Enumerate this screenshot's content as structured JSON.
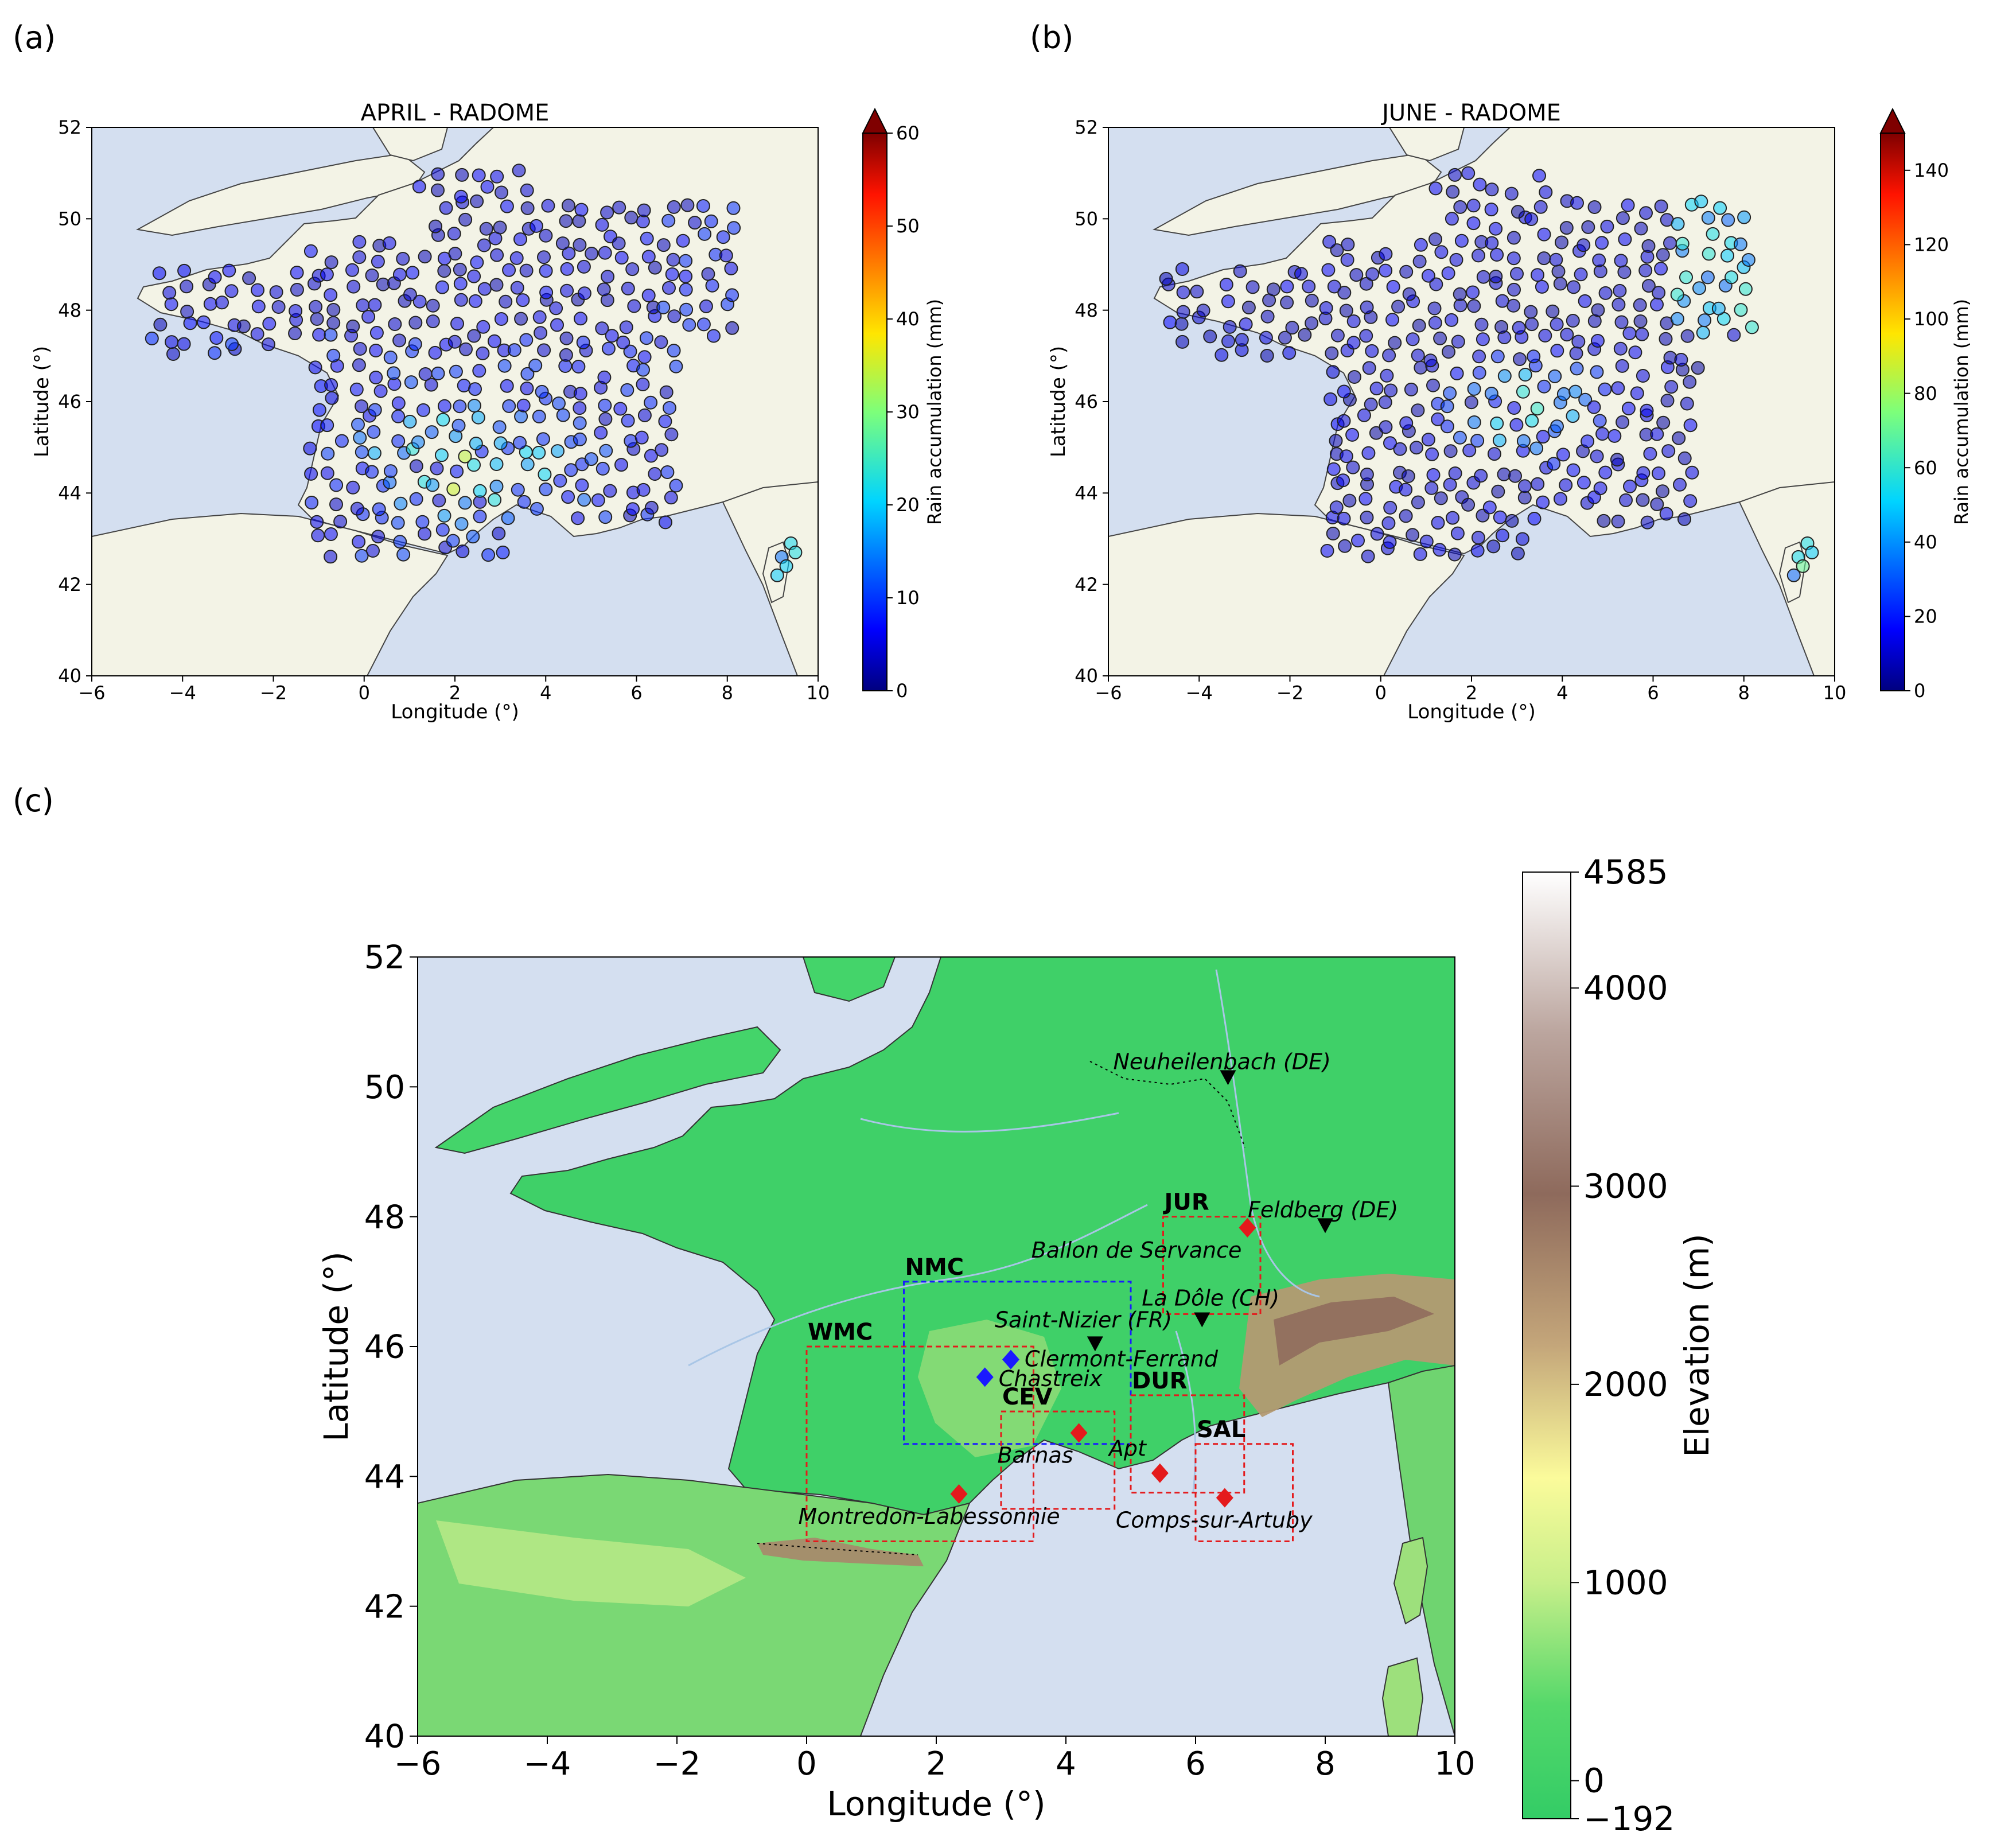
{
  "panels": {
    "a": {
      "label": "(a)",
      "title": "APRIL - RADOME",
      "xlabel": "Longitude (°)",
      "ylabel": "Latitude (°)",
      "cbar_label": "Rain accumulation (mm)",
      "cbar_ticks": [
        "0",
        "10",
        "20",
        "30",
        "40",
        "50",
        "60"
      ],
      "cbar_max": 60
    },
    "b": {
      "label": "(b)",
      "title": "JUNE - RADOME",
      "xlabel": "Longitude (°)",
      "ylabel": "Latitude (°)",
      "cbar_label": "Rain accumulation (mm)",
      "cbar_ticks": [
        "0",
        "20",
        "40",
        "60",
        "80",
        "100",
        "120",
        "140"
      ],
      "cbar_max": 150
    },
    "c": {
      "label": "(c)",
      "xlabel": "Longitude (°)",
      "ylabel": "Latitude (°)",
      "cbar_label": "Elevation (m)",
      "cbar_ticks": [
        "4585",
        "4000",
        "3000",
        "2000",
        "1000",
        "0",
        "-192"
      ],
      "cbar_range": [
        -192,
        4585
      ]
    }
  },
  "axes": {
    "x_ticks": [
      "−6",
      "−4",
      "−2",
      "0",
      "2",
      "4",
      "6",
      "8",
      "10"
    ],
    "y_ticks": [
      "40",
      "42",
      "44",
      "46",
      "48",
      "50",
      "52"
    ],
    "xlim": [
      -6,
      10
    ],
    "ylim": [
      40,
      52
    ]
  },
  "colors": {
    "sea": "#d4dff0",
    "land": "#f3f3e6",
    "rivers": "#a9c6e6",
    "terrain_low": "#3dd26a",
    "red": "#e41a1c",
    "blue": "#1a1aff"
  },
  "regions": [
    {
      "name": "WMC",
      "lon": [
        0,
        3.5
      ],
      "lat": [
        43,
        46
      ],
      "color": "red"
    },
    {
      "name": "NMC",
      "lon": [
        1.5,
        5
      ],
      "lat": [
        44.5,
        47
      ],
      "color": "blue"
    },
    {
      "name": "CEV",
      "lon": [
        3,
        4.75
      ],
      "lat": [
        43.5,
        45
      ],
      "color": "red"
    },
    {
      "name": "JUR",
      "lon": [
        5.5,
        7
      ],
      "lat": [
        46.5,
        48
      ],
      "color": "red"
    },
    {
      "name": "DUR",
      "lon": [
        5,
        6.75
      ],
      "lat": [
        43.75,
        45.25
      ],
      "color": "red"
    },
    {
      "name": "SAL",
      "lon": [
        6,
        7.5
      ],
      "lat": [
        43,
        44.5
      ],
      "color": "red"
    }
  ],
  "sites": [
    {
      "name": "Clermont-Ferrand",
      "lon": 3.15,
      "lat": 45.8,
      "marker": "diamond",
      "color": "blue"
    },
    {
      "name": "Chastreix",
      "lon": 2.75,
      "lat": 45.53,
      "marker": "diamond",
      "color": "blue"
    },
    {
      "name": "Barnas",
      "lon": 4.2,
      "lat": 44.67,
      "marker": "diamond",
      "color": "red"
    },
    {
      "name": "Montredon-Labessonnie",
      "lon": 2.35,
      "lat": 43.73,
      "marker": "diamond",
      "color": "red"
    },
    {
      "name": "Apt",
      "lon": 5.45,
      "lat": 44.05,
      "marker": "diamond",
      "color": "red"
    },
    {
      "name": "Comps-sur-Artuby",
      "lon": 6.45,
      "lat": 43.67,
      "marker": "diamond",
      "color": "red"
    },
    {
      "name": "Ballon de Servance",
      "lon": 6.8,
      "lat": 47.83,
      "marker": "diamond",
      "color": "red"
    },
    {
      "name": "Neuheilenbach (DE)",
      "lon": 6.5,
      "lat": 50.15,
      "marker": "triangle",
      "color": "black"
    },
    {
      "name": "Feldberg (DE)",
      "lon": 8.0,
      "lat": 47.87,
      "marker": "triangle",
      "color": "black"
    },
    {
      "name": "La Dôle (CH)",
      "lon": 6.1,
      "lat": 46.42,
      "marker": "triangle",
      "color": "black"
    },
    {
      "name": "Saint-Nizier (FR)",
      "lon": 4.45,
      "lat": 46.05,
      "marker": "triangle",
      "color": "black"
    }
  ]
}
